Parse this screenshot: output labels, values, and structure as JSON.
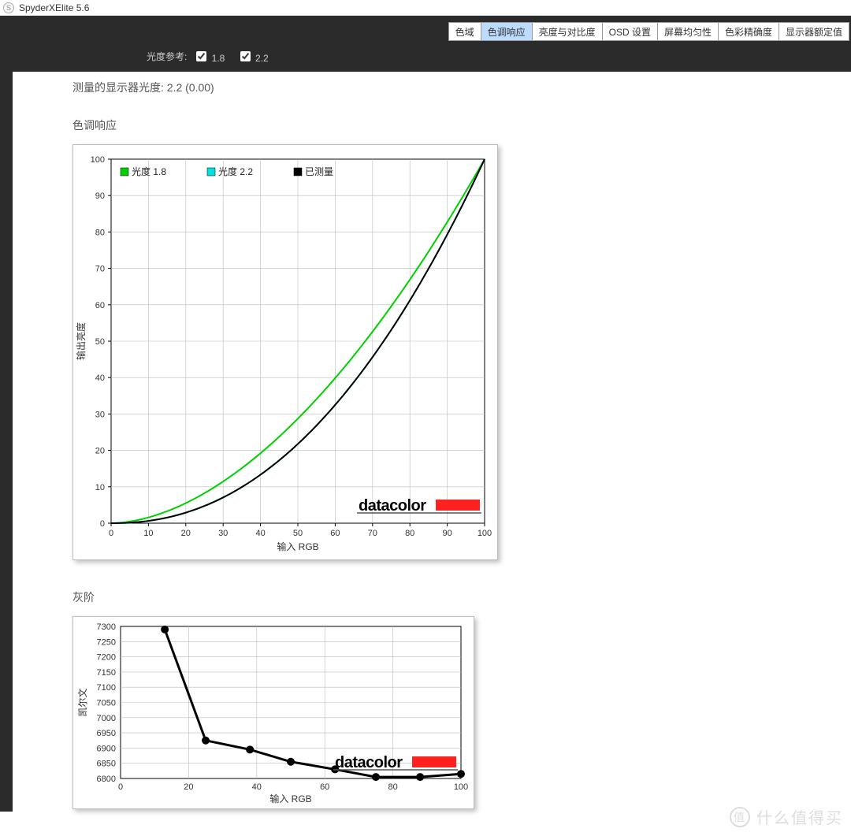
{
  "app": {
    "icon_letter": "S",
    "title": "SpyderXElite 5.6"
  },
  "tabs": [
    {
      "label": "色域",
      "active": false
    },
    {
      "label": "色调响应",
      "active": true
    },
    {
      "label": "亮度与对比度",
      "active": false
    },
    {
      "label": "OSD 设置",
      "active": false
    },
    {
      "label": "屏幕均匀性",
      "active": false
    },
    {
      "label": "色彩精确度",
      "active": false
    },
    {
      "label": "显示器额定值",
      "active": false
    }
  ],
  "options": {
    "label": "光度参考:",
    "items": [
      {
        "value": "1.8",
        "checked": true
      },
      {
        "value": "2.2",
        "checked": true
      }
    ]
  },
  "measured_line": "测量的显示器光度:  2.2 (0.00)",
  "chart1": {
    "title": "色调响应",
    "type": "line",
    "xlabel": "输入 RGB",
    "ylabel": "输出亮度",
    "xlim": [
      0,
      100
    ],
    "ylim": [
      0,
      100
    ],
    "xtick_step": 10,
    "ytick_step": 10,
    "background_color": "#ffffff",
    "grid_color": "#bbbbbb",
    "axis_color": "#000000",
    "tick_label_fontsize": 11,
    "axis_label_fontsize": 12,
    "line_width": 2,
    "legend": {
      "position": "top-left",
      "items": [
        {
          "swatch": "#00d000",
          "label": "光度 1.8"
        },
        {
          "swatch": "#00e0e0",
          "label": "光度 2.2"
        },
        {
          "swatch": "#000000",
          "label": "已测量"
        }
      ]
    },
    "series": [
      {
        "name": "gamma_1_8",
        "color": "#00d000",
        "gamma": 1.8
      },
      {
        "name": "gamma_2_2",
        "color": "#00e0e0",
        "gamma": 2.2
      },
      {
        "name": "measured",
        "color": "#000000",
        "gamma": 2.2
      }
    ],
    "brand": {
      "text": "datacolor",
      "bar_color": "#ff2020",
      "underline_color": "#555555"
    }
  },
  "chart2": {
    "title": "灰阶",
    "type": "line-marker",
    "xlabel": "输入 RGB",
    "ylabel": "凯尔文",
    "xlim": [
      0,
      100
    ],
    "ylim": [
      6800,
      7300
    ],
    "xtick_step": 20,
    "ytick_step": 50,
    "background_color": "#ffffff",
    "grid_color": "#bbbbbb",
    "axis_color": "#000000",
    "tick_label_fontsize": 11,
    "axis_label_fontsize": 12,
    "line_width": 3,
    "marker_size": 5,
    "series_color": "#000000",
    "points": [
      {
        "x": 13,
        "y": 7290
      },
      {
        "x": 25,
        "y": 6925
      },
      {
        "x": 38,
        "y": 6895
      },
      {
        "x": 50,
        "y": 6855
      },
      {
        "x": 63,
        "y": 6830
      },
      {
        "x": 75,
        "y": 6805
      },
      {
        "x": 88,
        "y": 6805
      },
      {
        "x": 100,
        "y": 6815
      }
    ],
    "brand": {
      "text": "datacolor",
      "bar_color": "#ff2020",
      "underline_color": "#555555"
    }
  },
  "watermark": {
    "icon": "值",
    "text": "什么值得买"
  }
}
